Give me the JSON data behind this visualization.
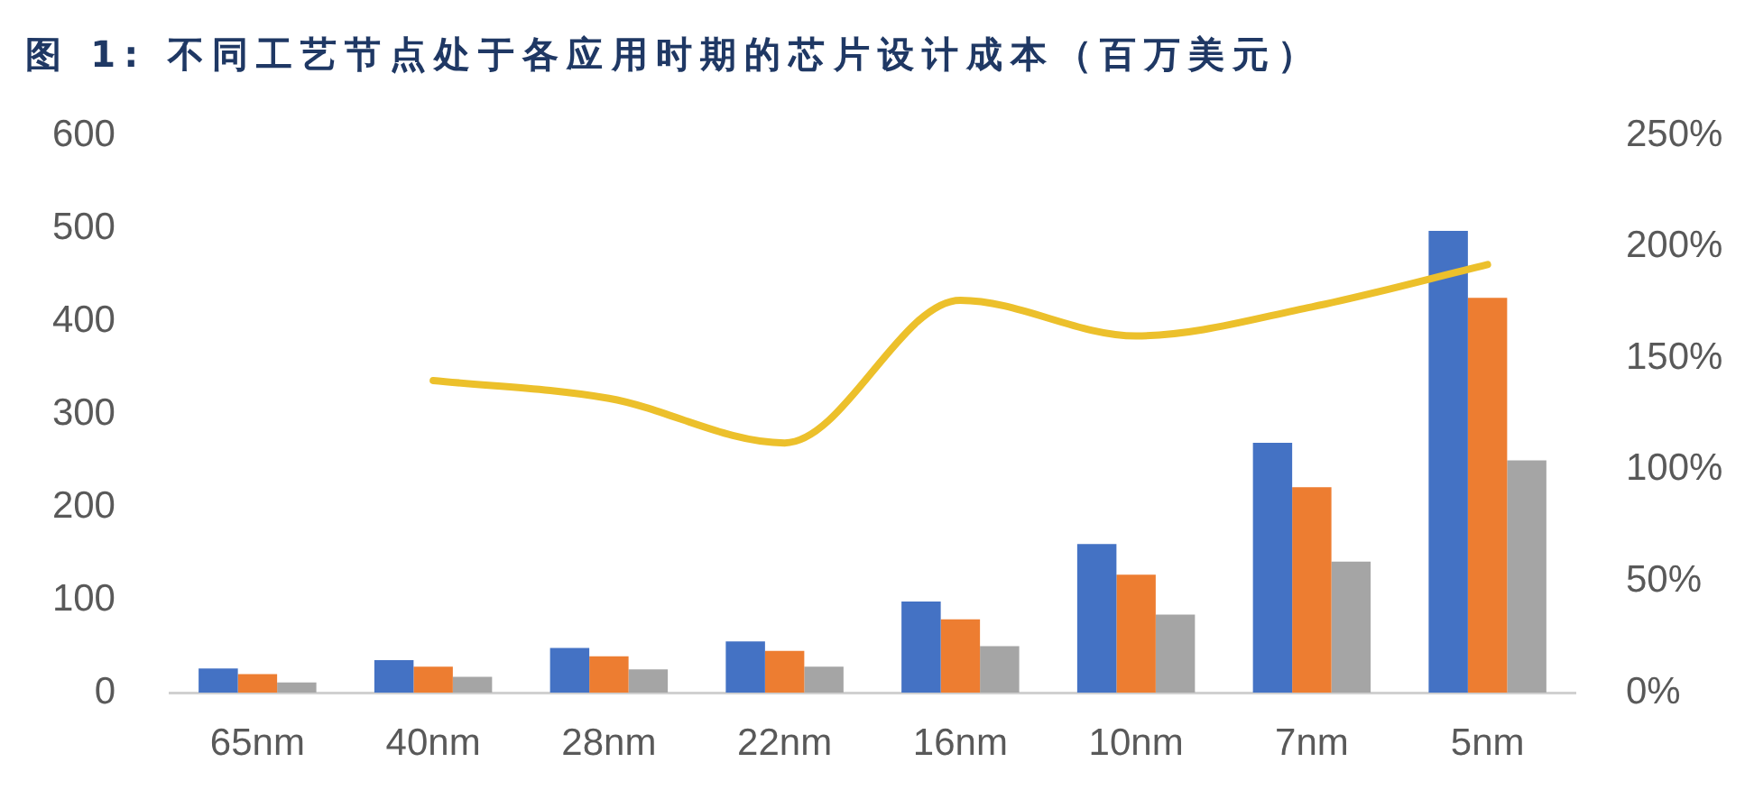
{
  "chart_data": {
    "type": "bar",
    "title": "图 1: 不同工艺节点处于各应用时期的芯片设计成本（百万美元）",
    "categories": [
      "65nm",
      "40nm",
      "28nm",
      "22nm",
      "16nm",
      "10nm",
      "7nm",
      "5nm"
    ],
    "series": [
      {
        "color": "#4472c4",
        "values": [
          26,
          35,
          48,
          55,
          98,
          160,
          269,
          497
        ]
      },
      {
        "color": "#ed7d31",
        "values": [
          20,
          28,
          39,
          45,
          79,
          127,
          221,
          425
        ]
      },
      {
        "color": "#a5a5a5",
        "values": [
          11,
          17,
          25,
          28,
          50,
          84,
          141,
          250
        ]
      },
      {
        "type": "line",
        "color": "#ecc02b",
        "axis": "y2",
        "values": [
          null,
          140,
          132,
          112,
          176,
          160,
          173,
          192
        ]
      }
    ],
    "ylim": [
      0,
      600
    ],
    "yticks": [
      0,
      100,
      200,
      300,
      400,
      500,
      600
    ],
    "y2lim": [
      0,
      250
    ],
    "y2ticks": [
      {
        "value": 0,
        "label": "0%"
      },
      {
        "value": 50,
        "label": "50%"
      },
      {
        "value": 100,
        "label": "100%"
      },
      {
        "value": 150,
        "label": "150%"
      },
      {
        "value": 200,
        "label": "200%"
      },
      {
        "value": 250,
        "label": "250%"
      }
    ],
    "grid": false,
    "legend": false,
    "marker": "none"
  }
}
